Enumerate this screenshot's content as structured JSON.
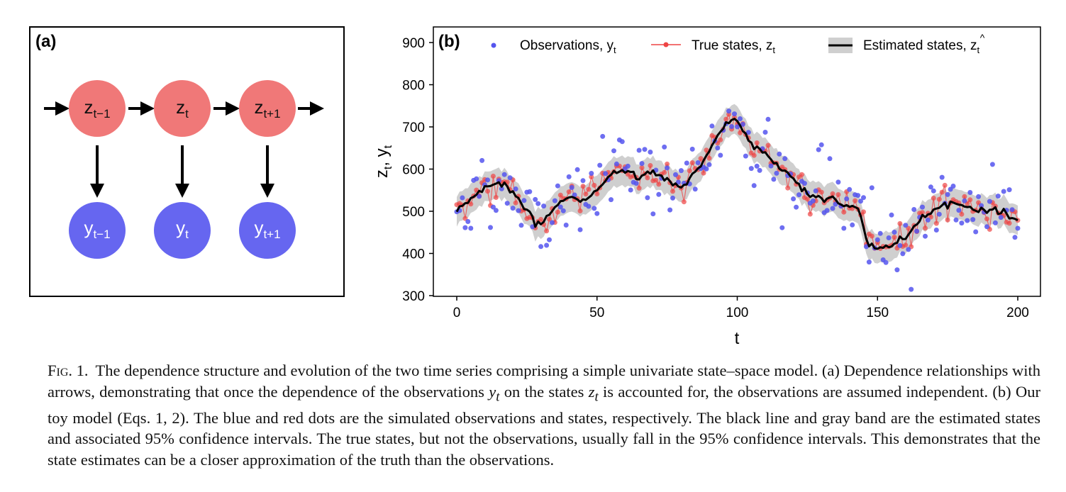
{
  "panel_a": {
    "label": "(a)",
    "states": [
      {
        "base": "z",
        "sub": "t−1"
      },
      {
        "base": "z",
        "sub": "t"
      },
      {
        "base": "z",
        "sub": "t+1"
      }
    ],
    "observations": [
      {
        "base": "y",
        "sub": "t−1"
      },
      {
        "base": "y",
        "sub": "t"
      },
      {
        "base": "y",
        "sub": "t+1"
      }
    ],
    "colors": {
      "state": "#f07878",
      "observation": "#6666f0",
      "frame": "#000000"
    }
  },
  "panel_b": {
    "label": "(b)",
    "xlabel": "t",
    "ylabel": {
      "part1": "z",
      "sub1": "t",
      "sep": ", ",
      "part2": "y",
      "sub2": "t"
    },
    "xticks": [
      "0",
      "50",
      "100",
      "150",
      "200"
    ],
    "yticks": [
      "300",
      "400",
      "500",
      "600",
      "700",
      "800",
      "900"
    ],
    "legend": {
      "observations": {
        "text": "Observations, y",
        "sub": "t"
      },
      "true_states": {
        "text": "True states, z",
        "sub": "t"
      },
      "estimated": {
        "text": "Estimated states, ",
        "hatletter": "z",
        "sub": "t"
      }
    },
    "colors": {
      "observations": "#5555ee",
      "true_states": "#ee4444",
      "estimated": "#000000",
      "band": "#cfcfcf"
    }
  },
  "chart_data": {
    "type": "line",
    "xlim": [
      0,
      200
    ],
    "ylim": [
      300,
      900
    ],
    "xlabel": "t",
    "ylabel": "zt, yt",
    "grid": false,
    "legend_position": "top",
    "keyframes_estimated": [
      [
        0,
        500
      ],
      [
        5,
        530
      ],
      [
        10,
        555
      ],
      [
        15,
        570
      ],
      [
        20,
        545
      ],
      [
        25,
        505
      ],
      [
        28,
        470
      ],
      [
        30,
        470
      ],
      [
        35,
        510
      ],
      [
        40,
        530
      ],
      [
        45,
        525
      ],
      [
        50,
        550
      ],
      [
        55,
        590
      ],
      [
        60,
        595
      ],
      [
        65,
        580
      ],
      [
        70,
        595
      ],
      [
        75,
        575
      ],
      [
        80,
        555
      ],
      [
        85,
        590
      ],
      [
        90,
        640
      ],
      [
        95,
        700
      ],
      [
        98,
        720
      ],
      [
        100,
        715
      ],
      [
        105,
        660
      ],
      [
        110,
        640
      ],
      [
        115,
        600
      ],
      [
        120,
        580
      ],
      [
        125,
        540
      ],
      [
        130,
        530
      ],
      [
        135,
        530
      ],
      [
        140,
        510
      ],
      [
        143,
        510
      ],
      [
        147,
        420
      ],
      [
        150,
        410
      ],
      [
        155,
        420
      ],
      [
        160,
        440
      ],
      [
        165,
        480
      ],
      [
        170,
        505
      ],
      [
        175,
        520
      ],
      [
        180,
        515
      ],
      [
        185,
        505
      ],
      [
        190,
        505
      ],
      [
        195,
        500
      ],
      [
        200,
        475
      ]
    ],
    "band_halfwidth": 35,
    "observations_noise_sd": 55,
    "true_states_noise_sd": 22,
    "n_points": 201,
    "series": [
      {
        "name": "Observations, yt"
      },
      {
        "name": "True states, zt"
      },
      {
        "name": "Estimated states, ẑt"
      }
    ]
  },
  "caption": {
    "label": "Fig. 1.",
    "part1": "The dependence structure and evolution of the two time series comprising a simple univariate state–space model. (a) Dependence relationships with arrows, demonstrating that once the dependence of the observations ",
    "y": "y",
    "ysub": "t",
    "part2": " on the states ",
    "z": "z",
    "zsub": "t",
    "part3": " is accounted for, the observations are assumed independent. (b) Our toy model (Eqs. 1, 2). The blue and red dots are the simulated observations and states, respectively. The black line and gray band are the estimated states and associated 95% confidence intervals. The true states, but not the observations, usually fall in the 95% confidence intervals. This demonstrates that the state estimates can be a closer approximation of the truth than the observations."
  }
}
